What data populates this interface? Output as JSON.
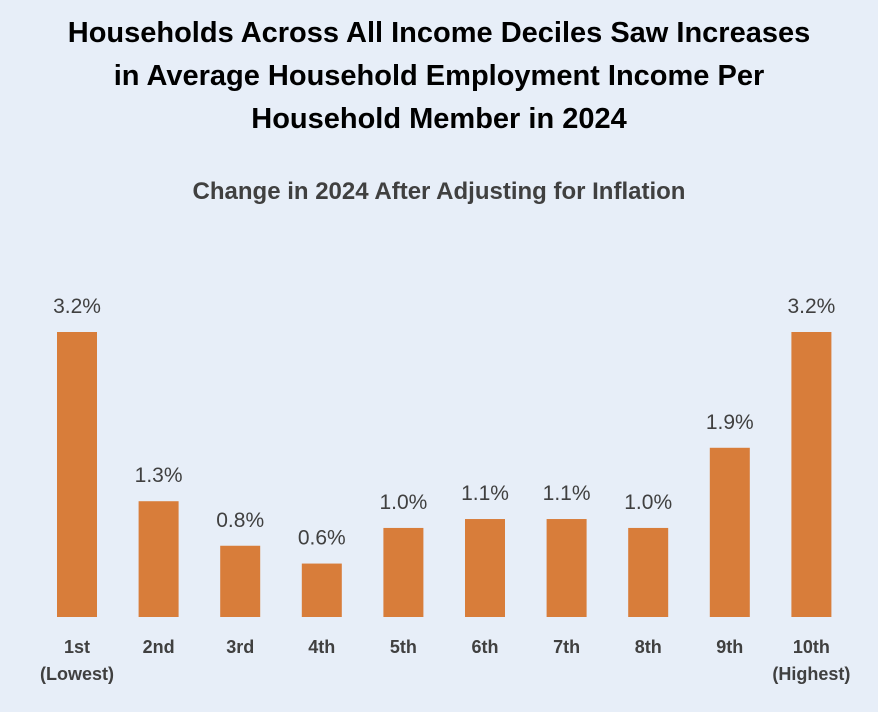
{
  "title_lines": [
    "Households Across All Income Deciles Saw Increases",
    "in Average Household Employment Income Per",
    "Household Member in 2024"
  ],
  "colors": {
    "bar": "#d87d3a",
    "background": "#e7eef8",
    "text": "#404040"
  },
  "chart_data": {
    "type": "bar",
    "title": "Households Across All Income Deciles Saw Increases in Average Household Employment Income Per Household Member in 2024",
    "subtitle": "Change in 2024 After Adjusting for Inflation",
    "categories": [
      [
        "1st",
        "(Lowest)"
      ],
      [
        "2nd"
      ],
      [
        "3rd"
      ],
      [
        "4th"
      ],
      [
        "5th"
      ],
      [
        "6th"
      ],
      [
        "7th"
      ],
      [
        "8th"
      ],
      [
        "9th"
      ],
      [
        "10th",
        "(Highest)"
      ]
    ],
    "values": [
      3.2,
      1.3,
      0.8,
      0.6,
      1.0,
      1.1,
      1.1,
      1.0,
      1.9,
      3.2
    ],
    "value_labels": [
      "3.2%",
      "1.3%",
      "0.8%",
      "0.6%",
      "1.0%",
      "1.1%",
      "1.1%",
      "1.0%",
      "1.9%",
      "3.2%"
    ],
    "unit": "%",
    "xlabel": "",
    "ylabel": "",
    "ylim": [
      0,
      3.2
    ],
    "grid": false,
    "legend": "none"
  }
}
